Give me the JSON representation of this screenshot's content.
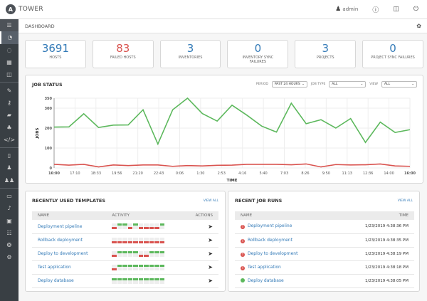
{
  "header": {
    "brand": "TOWER",
    "logo_letter": "A",
    "user": "admin",
    "icons": [
      "user-icon",
      "info-icon",
      "docs-book-icon",
      "power-icon"
    ]
  },
  "breadcrumb": {
    "title": "DASHBOARD",
    "right_icon": "activity-stream-icon"
  },
  "sidebar": {
    "items": [
      "menu",
      "dashboard",
      "jobs",
      "schedules",
      "my-view",
      "templates",
      "credentials",
      "projects",
      "inventories",
      "inventory-scripts",
      "organizations",
      "users",
      "teams",
      "credential-types",
      "notifications",
      "management-jobs",
      "instance-groups",
      "applications",
      "settings"
    ],
    "active": "dashboard"
  },
  "stats": [
    {
      "value": "3691",
      "label": "HOSTS",
      "color": "#337ab7"
    },
    {
      "value": "83",
      "label": "FAILED HOSTS",
      "color": "#d9534f"
    },
    {
      "value": "3",
      "label": "INVENTORIES",
      "color": "#337ab7"
    },
    {
      "value": "0",
      "label": "INVENTORY SYNC FAILURES",
      "color": "#337ab7"
    },
    {
      "value": "3",
      "label": "PROJECTS",
      "color": "#337ab7"
    },
    {
      "value": "0",
      "label": "PROJECT SYNC FAILURES",
      "color": "#337ab7"
    }
  ],
  "job_status": {
    "title": "JOB STATUS",
    "period_label": "PERIOD",
    "period": "PAST 24 HOURS",
    "job_type_label": "JOB TYPE",
    "job_type": "ALL",
    "view_label": "VIEW",
    "view": "ALL"
  },
  "chart_data": {
    "type": "line",
    "xlabel": "TIME",
    "ylabel": "JOBS",
    "ylim": [
      0,
      350
    ],
    "yticks": [
      0,
      100,
      200,
      300,
      350
    ],
    "xticks": [
      "16:00",
      "17:10",
      "18:33",
      "19:56",
      "21:20",
      "22:43",
      "0:06",
      "1:30",
      "2:53",
      "4:16",
      "5:40",
      "7:03",
      "8:26",
      "9:50",
      "11:13",
      "12:36",
      "14:00",
      "16:00"
    ],
    "series": [
      {
        "color": "#5cb85c",
        "values": [
          205,
          206,
          272,
          203,
          215,
          216,
          292,
          120,
          292,
          350,
          273,
          235,
          315,
          265,
          210,
          180,
          325,
          222,
          242,
          200,
          248,
          128,
          230,
          178,
          192
        ]
      },
      {
        "color": "#d9534f",
        "values": [
          18,
          14,
          18,
          5,
          15,
          12,
          15,
          15,
          8,
          12,
          10,
          13,
          14,
          18,
          18,
          18,
          16,
          20,
          5,
          17,
          15,
          16,
          20,
          10,
          8
        ]
      }
    ]
  },
  "templates": {
    "title": "RECENTLY USED TEMPLATES",
    "view_all": "VIEW ALL",
    "columns": [
      "NAME",
      "ACTIVITY",
      "ACTIONS"
    ],
    "rows": [
      {
        "name": "Deployment pipeline",
        "activity": "RGGRGRRRRG"
      },
      {
        "name": "Rollback deployment",
        "activity": "RRRRRRRRRR"
      },
      {
        "name": "Deploy to development",
        "activity": "RGGGGRRGGG"
      },
      {
        "name": "Test application",
        "activity": "RGGGGGGGGG"
      },
      {
        "name": "Deploy database",
        "activity": "GGGGGGGGGG"
      }
    ]
  },
  "job_runs": {
    "title": "RECENT JOB RUNS",
    "view_all": "VIEW ALL",
    "columns": [
      "NAME",
      "TIME"
    ],
    "rows": [
      {
        "name": "Deployment pipeline",
        "time": "1/23/2019 4:38:36 PM",
        "status": "failed"
      },
      {
        "name": "Rollback deployment",
        "time": "1/23/2019 4:38:35 PM",
        "status": "failed"
      },
      {
        "name": "Deploy to development",
        "time": "1/23/2019 4:38:19 PM",
        "status": "failed"
      },
      {
        "name": "Test application",
        "time": "1/23/2019 4:38:18 PM",
        "status": "failed"
      },
      {
        "name": "Deploy database",
        "time": "1/23/2019 4:38:05 PM",
        "status": "successful"
      }
    ]
  }
}
